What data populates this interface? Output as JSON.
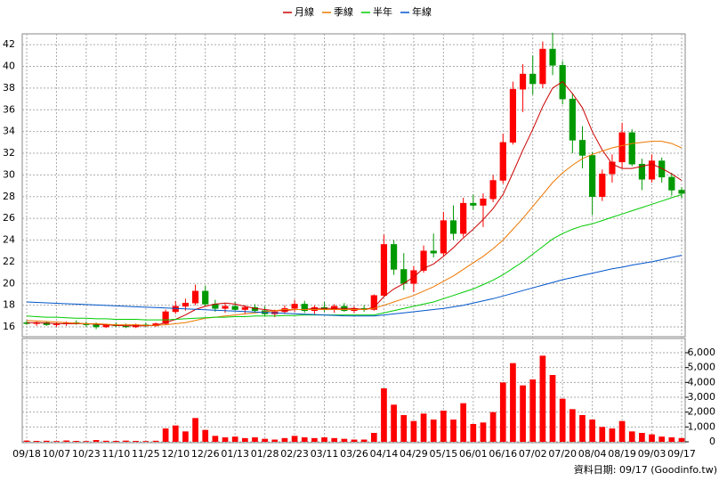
{
  "chart_data": {
    "type": "candlestick",
    "categories": [
      "09/18",
      null,
      null,
      "10/07",
      null,
      null,
      "10/23",
      null,
      null,
      "11/10",
      null,
      null,
      "11/25",
      null,
      null,
      "12/10",
      null,
      null,
      "12/26",
      null,
      null,
      "01/13",
      null,
      null,
      "01/28",
      null,
      null,
      "02/23",
      null,
      null,
      "03/11",
      null,
      null,
      "03/26",
      null,
      null,
      "04/14",
      null,
      null,
      "04/29",
      null,
      null,
      "05/15",
      null,
      null,
      "06/01",
      null,
      null,
      "06/16",
      null,
      null,
      "07/02",
      null,
      null,
      "07/20",
      null,
      null,
      "08/04",
      null,
      null,
      "08/19",
      null,
      null,
      "09/03",
      null,
      null,
      "09/17"
    ],
    "open": [
      16.4,
      16.3,
      16.4,
      16.2,
      16.3,
      16.4,
      16.3,
      16.2,
      16.0,
      16.2,
      16.1,
      16.0,
      16.2,
      16.1,
      16.3,
      17.4,
      17.9,
      18.2,
      19.3,
      18.1,
      17.7,
      17.9,
      17.6,
      17.8,
      17.5,
      17.2,
      17.4,
      17.7,
      18.1,
      17.5,
      17.8,
      17.6,
      17.9,
      17.5,
      17.7,
      17.6,
      18.9,
      23.6,
      21.3,
      20.0,
      21.2,
      23.0,
      22.8,
      25.8,
      24.6,
      27.4,
      27.2,
      27.8,
      29.5,
      33.0,
      37.9,
      39.3,
      38.4,
      41.6,
      40.1,
      37.0,
      33.2,
      31.8,
      28.0,
      30.1,
      31.2,
      33.9,
      31.0,
      29.6,
      31.3,
      29.8,
      28.6
    ],
    "high": [
      16.6,
      16.5,
      16.5,
      16.4,
      16.5,
      16.6,
      16.5,
      16.4,
      16.3,
      16.4,
      16.3,
      16.3,
      16.4,
      16.4,
      17.6,
      18.4,
      18.6,
      19.9,
      19.8,
      18.5,
      18.2,
      18.3,
      18.0,
      18.1,
      17.9,
      17.6,
      18.0,
      18.5,
      18.4,
      18.0,
      18.3,
      18.1,
      18.2,
      17.9,
      18.0,
      19.0,
      24.5,
      24.0,
      22.8,
      21.6,
      23.5,
      24.6,
      26.6,
      27.2,
      27.9,
      28.2,
      28.3,
      30.0,
      33.8,
      38.6,
      40.2,
      41.0,
      42.3,
      43.1,
      40.5,
      37.5,
      34.5,
      32.1,
      30.5,
      31.9,
      34.8,
      34.2,
      31.5,
      31.9,
      31.6,
      30.2,
      28.9
    ],
    "low": [
      16.2,
      16.1,
      16.1,
      16.0,
      16.1,
      16.2,
      16.0,
      15.8,
      15.9,
      16.0,
      15.9,
      15.9,
      16.0,
      16.0,
      16.2,
      17.2,
      17.5,
      18.0,
      17.9,
      17.4,
      17.3,
      17.5,
      17.2,
      17.3,
      17.0,
      16.9,
      17.2,
      17.4,
      17.3,
      17.2,
      17.4,
      17.3,
      17.4,
      17.3,
      17.4,
      17.5,
      18.8,
      20.8,
      19.4,
      19.2,
      21.0,
      22.4,
      22.5,
      24.0,
      24.3,
      26.8,
      25.2,
      27.5,
      29.2,
      32.8,
      35.8,
      37.4,
      38.0,
      39.2,
      36.5,
      32.0,
      30.6,
      26.3,
      27.6,
      29.3,
      30.6,
      30.8,
      28.6,
      29.3,
      29.3,
      28.1,
      27.9
    ],
    "close": [
      16.3,
      16.4,
      16.2,
      16.3,
      16.4,
      16.3,
      16.2,
      16.0,
      16.2,
      16.1,
      16.0,
      16.2,
      16.1,
      16.3,
      17.4,
      17.9,
      18.2,
      19.3,
      18.1,
      17.7,
      17.9,
      17.6,
      17.8,
      17.5,
      17.2,
      17.4,
      17.7,
      18.1,
      17.5,
      17.8,
      17.6,
      17.9,
      17.5,
      17.7,
      17.6,
      18.9,
      23.6,
      21.3,
      20.0,
      21.2,
      23.0,
      22.8,
      25.8,
      24.6,
      27.4,
      27.2,
      27.8,
      29.5,
      33.0,
      37.9,
      39.3,
      38.4,
      41.6,
      40.1,
      37.0,
      33.2,
      31.8,
      28.0,
      30.1,
      31.2,
      33.9,
      31.0,
      29.6,
      31.3,
      29.8,
      28.6,
      28.3
    ],
    "up_color": "#ff0000",
    "down_color": "#009900",
    "series": [
      {
        "name": "月線",
        "color": "#cc0000",
        "values": [
          16.4,
          16.4,
          16.35,
          16.3,
          16.3,
          16.3,
          16.3,
          16.25,
          16.2,
          16.15,
          16.1,
          16.1,
          16.1,
          16.15,
          16.4,
          16.7,
          17.1,
          17.6,
          17.9,
          18.1,
          18.2,
          18.1,
          17.9,
          17.7,
          17.6,
          17.5,
          17.5,
          17.6,
          17.6,
          17.7,
          17.7,
          17.7,
          17.7,
          17.7,
          17.6,
          17.8,
          18.8,
          19.5,
          20.0,
          20.6,
          21.4,
          21.8,
          22.5,
          23.3,
          24.2,
          25.0,
          25.9,
          26.9,
          28.2,
          30.2,
          32.3,
          34.2,
          36.3,
          38.0,
          38.6,
          37.5,
          36.2,
          34.0,
          32.3,
          31.0,
          30.6,
          30.6,
          30.8,
          31.0,
          30.6,
          30.1,
          29.5
        ]
      },
      {
        "name": "季線",
        "color": "#ee7700",
        "values": [
          16.6,
          16.55,
          16.5,
          16.45,
          16.4,
          16.35,
          16.3,
          16.3,
          16.25,
          16.2,
          16.2,
          16.2,
          16.15,
          16.15,
          16.2,
          16.3,
          16.4,
          16.6,
          16.8,
          16.9,
          17.0,
          17.1,
          17.2,
          17.3,
          17.4,
          17.5,
          17.6,
          17.6,
          17.6,
          17.6,
          17.6,
          17.6,
          17.6,
          17.6,
          17.6,
          17.7,
          18.0,
          18.3,
          18.6,
          18.9,
          19.3,
          19.7,
          20.2,
          20.7,
          21.3,
          21.9,
          22.5,
          23.2,
          24.0,
          25.0,
          26.0,
          27.1,
          28.2,
          29.3,
          30.2,
          30.9,
          31.5,
          31.9,
          32.2,
          32.5,
          32.7,
          32.9,
          33.0,
          33.1,
          33.1,
          32.9,
          32.5
        ]
      },
      {
        "name": "半年",
        "color": "#00cc00",
        "values": [
          17.0,
          16.95,
          16.9,
          16.9,
          16.85,
          16.8,
          16.8,
          16.75,
          16.75,
          16.7,
          16.7,
          16.7,
          16.65,
          16.65,
          16.65,
          16.7,
          16.75,
          16.8,
          16.85,
          16.9,
          16.9,
          16.95,
          16.95,
          17.0,
          17.0,
          17.0,
          17.05,
          17.05,
          17.1,
          17.1,
          17.1,
          17.1,
          17.1,
          17.1,
          17.1,
          17.1,
          17.3,
          17.5,
          17.7,
          17.9,
          18.1,
          18.3,
          18.6,
          18.9,
          19.2,
          19.5,
          19.9,
          20.3,
          20.8,
          21.4,
          22.0,
          22.7,
          23.4,
          24.1,
          24.6,
          25.0,
          25.3,
          25.5,
          25.8,
          26.1,
          26.4,
          26.7,
          27.0,
          27.3,
          27.6,
          27.9,
          28.2
        ]
      },
      {
        "name": "年線",
        "color": "#0055cc",
        "values": [
          18.3,
          18.26,
          18.22,
          18.18,
          18.14,
          18.1,
          18.06,
          18.02,
          17.98,
          17.94,
          17.9,
          17.86,
          17.82,
          17.78,
          17.74,
          17.7,
          17.66,
          17.62,
          17.58,
          17.54,
          17.5,
          17.46,
          17.42,
          17.38,
          17.34,
          17.3,
          17.26,
          17.22,
          17.18,
          17.14,
          17.1,
          17.06,
          17.02,
          17.0,
          17.0,
          17.0,
          17.1,
          17.2,
          17.3,
          17.4,
          17.5,
          17.6,
          17.7,
          17.85,
          18.0,
          18.2,
          18.4,
          18.6,
          18.85,
          19.1,
          19.35,
          19.6,
          19.85,
          20.1,
          20.35,
          20.55,
          20.75,
          20.95,
          21.15,
          21.35,
          21.5,
          21.7,
          21.85,
          22.0,
          22.2,
          22.4,
          22.6
        ]
      }
    ],
    "volume": {
      "type": "bar",
      "axis": "y2",
      "color": "#ff0000",
      "values": [
        80,
        60,
        70,
        50,
        90,
        60,
        50,
        120,
        70,
        60,
        80,
        60,
        50,
        70,
        900,
        1100,
        700,
        1600,
        800,
        400,
        300,
        350,
        250,
        300,
        200,
        150,
        250,
        400,
        300,
        250,
        300,
        250,
        200,
        150,
        150,
        600,
        3600,
        2500,
        1800,
        1400,
        1900,
        1500,
        2100,
        1500,
        2600,
        1200,
        1300,
        2000,
        4000,
        5300,
        3800,
        4200,
        5800,
        4500,
        2900,
        2200,
        1800,
        1500,
        1000,
        900,
        1400,
        700,
        600,
        500,
        350,
        300,
        250
      ]
    },
    "ylim": [
      15.1,
      43
    ],
    "yticks": [
      16,
      18,
      20,
      22,
      24,
      26,
      28,
      30,
      32,
      34,
      36,
      38,
      40,
      42
    ],
    "y2lim": [
      0,
      6960
    ],
    "y2ticks": [
      0,
      {
        "value": 1000,
        "label": "1,000"
      },
      {
        "value": 2000,
        "label": "2,000"
      },
      {
        "value": 3000,
        "label": "3,000"
      },
      {
        "value": 4000,
        "label": "4,000"
      },
      {
        "value": 5000,
        "label": "5,000"
      },
      {
        "value": 6000,
        "label": "6,000"
      }
    ],
    "grid": true,
    "footnote": "資料日期: 09/17 (Goodinfo.tw)"
  }
}
